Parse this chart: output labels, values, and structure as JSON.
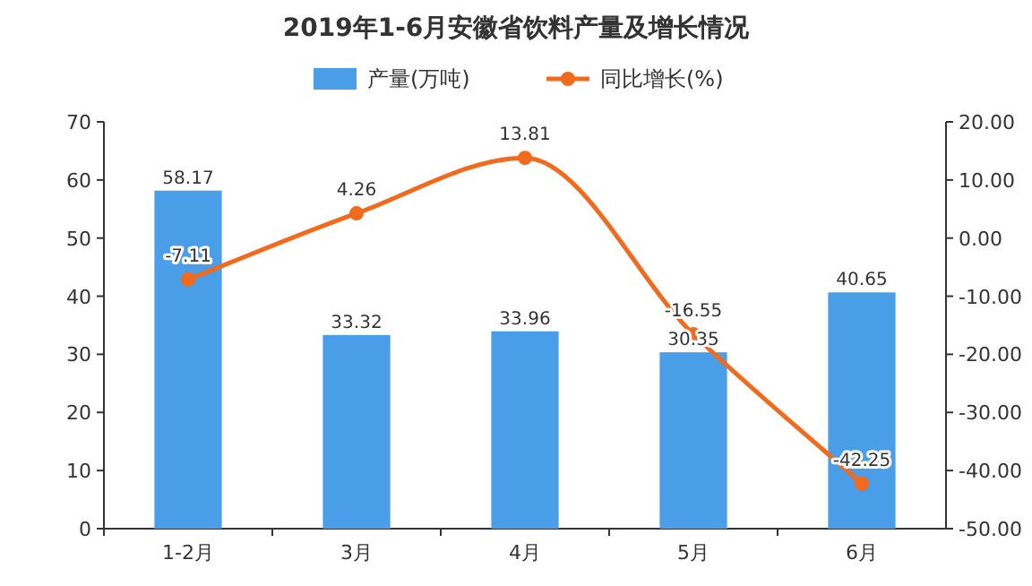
{
  "chart_data": {
    "type": "bar",
    "title": "2019年1-6月安徽省饮料产量及增长情况",
    "categories": [
      "1-2月",
      "3月",
      "4月",
      "5月",
      "6月"
    ],
    "series": [
      {
        "name": "产量(万吨)",
        "color": "#4a9ee8",
        "values": [
          58.17,
          33.32,
          33.96,
          30.35,
          40.65
        ]
      },
      {
        "name": "同比增长(%)",
        "type": "line",
        "axis": "y2",
        "color": "#f26a1b",
        "values": [
          -7.11,
          4.26,
          13.81,
          -16.55,
          -42.25
        ]
      }
    ],
    "ylim": [
      0,
      70
    ],
    "yticks": [
      0,
      10,
      20,
      30,
      40,
      50,
      60,
      70
    ],
    "y2lim": [
      -50,
      20
    ],
    "y2ticks": [
      {
        "value": -50,
        "label": "-50.00"
      },
      {
        "value": -40,
        "label": "-40.00"
      },
      {
        "value": -30,
        "label": "-30.00"
      },
      {
        "value": -20,
        "label": "-20.00"
      },
      {
        "value": -10,
        "label": "-10.00"
      },
      {
        "value": 0,
        "label": "0.00"
      },
      {
        "value": 10,
        "label": "10.00"
      },
      {
        "value": 20,
        "label": "20.00"
      }
    ],
    "legend": "top",
    "data_labels": true,
    "marker": "circle"
  }
}
